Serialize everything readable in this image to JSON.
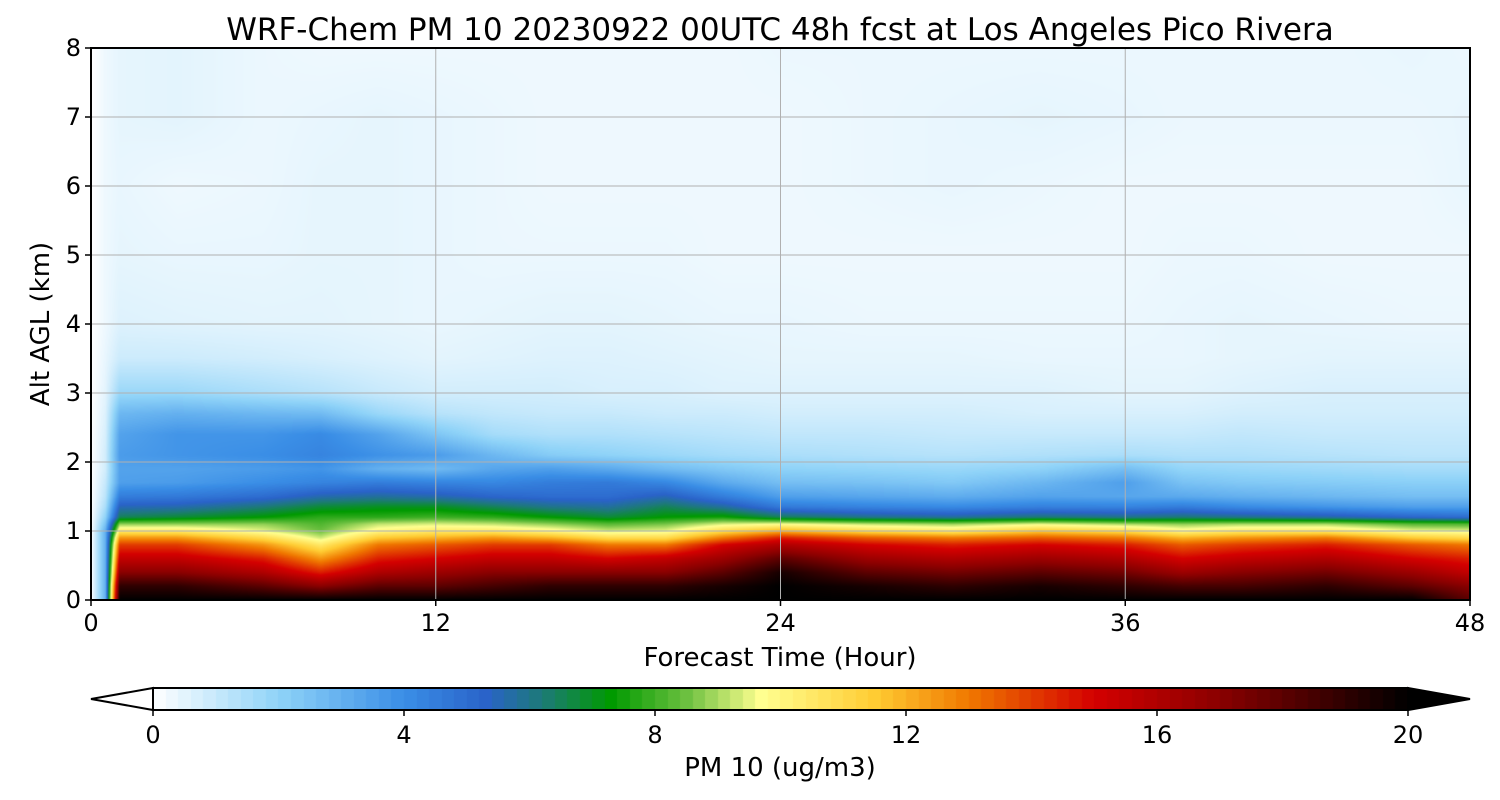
{
  "chart_data": {
    "type": "heatmap",
    "title": "WRF-Chem PM 10  20230922 00UTC 48h fcst at Los Angeles Pico Rivera",
    "xlabel": "Forecast Time (Hour)",
    "ylabel": "Alt AGL (km)",
    "xlim": [
      0,
      48
    ],
    "ylim": [
      0,
      8
    ],
    "xticks": [
      0,
      12,
      24,
      36,
      48
    ],
    "yticks": [
      0,
      1,
      2,
      3,
      4,
      5,
      6,
      7,
      8
    ],
    "grid": true,
    "colorbar": {
      "label": "PM 10  (ug/m3)",
      "orientation": "horizontal",
      "placement": "bottom",
      "extend": "both",
      "ticks": [
        0,
        4,
        8,
        12,
        16,
        20
      ],
      "range": [
        0,
        20
      ],
      "stops": [
        {
          "v": 0,
          "c": "#ffffff"
        },
        {
          "v": 2,
          "c": "#8fd3f8"
        },
        {
          "v": 4,
          "c": "#3a8ee6"
        },
        {
          "v": 5.3,
          "c": "#2a63c9"
        },
        {
          "v": 6.2,
          "c": "#1d7a78"
        },
        {
          "v": 7.3,
          "c": "#009a00"
        },
        {
          "v": 8.5,
          "c": "#6cc040"
        },
        {
          "v": 9.7,
          "c": "#ffff90"
        },
        {
          "v": 11.5,
          "c": "#ffcc33"
        },
        {
          "v": 13,
          "c": "#f07800"
        },
        {
          "v": 15,
          "c": "#d40000"
        },
        {
          "v": 17,
          "c": "#8a0000"
        },
        {
          "v": 20,
          "c": "#000000"
        }
      ]
    },
    "data_grid": {
      "hours": [
        0,
        0.5,
        1,
        3,
        6,
        8,
        10,
        12,
        14,
        16,
        18,
        20,
        22,
        24,
        27,
        30,
        33,
        36,
        38,
        40,
        43,
        46,
        48
      ],
      "altitude_km": [
        0,
        0.2,
        0.4,
        0.6,
        0.8,
        0.9,
        1.0,
        1.1,
        1.2,
        1.35,
        1.5,
        1.7,
        1.9,
        2.1,
        2.4,
        2.7,
        3.0,
        3.5,
        4.0,
        5.0,
        6.0,
        7.0,
        8.0
      ],
      "pm10_ugm3": [
        [
          0,
          3,
          20,
          20,
          20,
          20,
          20,
          20,
          20,
          20,
          20,
          20,
          20,
          20,
          20,
          20,
          20,
          20,
          20,
          20,
          20,
          20,
          18
        ],
        [
          0,
          3,
          19,
          19,
          18,
          17,
          18,
          18,
          18.5,
          19,
          19,
          19,
          19.5,
          20,
          19.5,
          19,
          19.5,
          19,
          18.5,
          18.5,
          19,
          18,
          17
        ],
        [
          0,
          3,
          17,
          17,
          16,
          14.5,
          16,
          16.5,
          17,
          17,
          17,
          17,
          18,
          19.5,
          18,
          17.5,
          18,
          17.5,
          16.5,
          17,
          17.5,
          16.5,
          15.5
        ],
        [
          0,
          3,
          15.5,
          15.5,
          14.5,
          12.5,
          14.5,
          15,
          15.5,
          15.5,
          15,
          15.5,
          16.5,
          18,
          16.5,
          16,
          16.5,
          16,
          15,
          15.5,
          16,
          15,
          14.5
        ],
        [
          0,
          3,
          14,
          14,
          12.5,
          10.5,
          13,
          13.5,
          14,
          14,
          13,
          13,
          15,
          16,
          15,
          14.5,
          15,
          14.5,
          13.5,
          14,
          14.5,
          13.5,
          13
        ],
        [
          0,
          3,
          12.5,
          12.5,
          11,
          9.3,
          11.5,
          12,
          12.5,
          12,
          11,
          11,
          13,
          14.5,
          13.5,
          13,
          13.5,
          13,
          12,
          12.5,
          13,
          11.5,
          11
        ],
        [
          0,
          3,
          10.5,
          10.5,
          9.5,
          8.5,
          10,
          10.5,
          10.5,
          10,
          9.3,
          9.5,
          11,
          12,
          11,
          10.5,
          11.5,
          11,
          10,
          10.5,
          10.5,
          9.6,
          9.5
        ],
        [
          0,
          2.5,
          8.8,
          8.8,
          8.8,
          8.2,
          9.2,
          9.4,
          9.2,
          8.8,
          8.3,
          8.6,
          9.4,
          9.7,
          9.2,
          8.9,
          9.5,
          9.0,
          8.8,
          9.0,
          9.0,
          8.3,
          8.2
        ],
        [
          0,
          2,
          6.5,
          6.8,
          7.3,
          7.8,
          7.8,
          8.0,
          7.8,
          7.3,
          6.8,
          7.3,
          7.5,
          6.5,
          6.0,
          5.8,
          6.2,
          6.0,
          6.2,
          6.0,
          5.7,
          5.2,
          5.0
        ],
        [
          0,
          1.5,
          5.5,
          5.6,
          6.2,
          6.8,
          7.0,
          7.0,
          6.5,
          6.0,
          5.8,
          6.5,
          5.8,
          4.6,
          4.3,
          4.1,
          4.4,
          4.3,
          4.5,
          4.1,
          3.8,
          3.5,
          3.5
        ],
        [
          0,
          1.2,
          4.5,
          4.6,
          5.0,
          5.6,
          5.8,
          5.6,
          5.2,
          5.0,
          5.0,
          5.5,
          4.5,
          3.5,
          3.3,
          3.1,
          3.4,
          3.3,
          3.2,
          3.0,
          2.8,
          2.6,
          2.6
        ],
        [
          0,
          1.0,
          3.5,
          3.6,
          4.0,
          4.3,
          4.5,
          4.3,
          4.2,
          4.5,
          4.6,
          4.2,
          3.2,
          2.6,
          2.5,
          2.3,
          2.8,
          3.5,
          2.5,
          2.3,
          2.2,
          2.1,
          2.1
        ],
        [
          0,
          0.8,
          3.4,
          3.4,
          3.6,
          3.8,
          3.0,
          2.7,
          3.3,
          3.5,
          3.2,
          2.7,
          2.3,
          2.0,
          1.9,
          1.8,
          2.0,
          2.6,
          1.9,
          1.8,
          1.7,
          1.6,
          1.6
        ],
        [
          0,
          0.8,
          3.6,
          3.8,
          4.0,
          4.3,
          3.9,
          3.6,
          2.8,
          2.2,
          2.0,
          1.8,
          1.6,
          1.5,
          1.4,
          1.3,
          1.4,
          1.5,
          1.4,
          1.4,
          1.3,
          1.2,
          1.2
        ],
        [
          0,
          0.7,
          3.4,
          3.8,
          3.8,
          4.1,
          3.4,
          2.4,
          1.6,
          1.4,
          1.4,
          1.3,
          1.2,
          1.1,
          1.1,
          1.0,
          1.0,
          1.0,
          1.0,
          1.1,
          1.0,
          1.0,
          1.0
        ],
        [
          0,
          0.6,
          2.8,
          3.0,
          2.8,
          2.7,
          1.8,
          1.3,
          1.1,
          1.0,
          1.0,
          0.9,
          0.9,
          0.8,
          0.8,
          0.8,
          0.7,
          0.7,
          0.7,
          0.8,
          0.8,
          0.8,
          0.8
        ],
        [
          0,
          0.5,
          1.8,
          1.8,
          1.5,
          1.3,
          1.0,
          0.8,
          0.8,
          0.8,
          0.7,
          0.7,
          0.6,
          0.6,
          0.6,
          0.6,
          0.6,
          0.5,
          0.5,
          0.6,
          0.7,
          0.7,
          0.7
        ],
        [
          0,
          0.4,
          0.9,
          0.9,
          0.8,
          0.7,
          0.6,
          0.5,
          0.55,
          0.6,
          0.6,
          0.55,
          0.5,
          0.45,
          0.45,
          0.45,
          0.4,
          0.4,
          0.4,
          0.45,
          0.5,
          0.5,
          0.5
        ],
        [
          0,
          0.3,
          0.6,
          0.55,
          0.5,
          0.5,
          0.45,
          0.4,
          0.45,
          0.5,
          0.5,
          0.45,
          0.4,
          0.4,
          0.35,
          0.35,
          0.35,
          0.35,
          0.4,
          0.45,
          0.4,
          0.35,
          0.35
        ],
        [
          0,
          0.3,
          0.45,
          0.4,
          0.4,
          0.45,
          0.45,
          0.4,
          0.35,
          0.35,
          0.35,
          0.35,
          0.3,
          0.3,
          0.3,
          0.3,
          0.3,
          0.3,
          0.35,
          0.35,
          0.3,
          0.3,
          0.3
        ],
        [
          0,
          0.3,
          0.4,
          0.3,
          0.35,
          0.45,
          0.45,
          0.4,
          0.35,
          0.3,
          0.3,
          0.3,
          0.3,
          0.3,
          0.35,
          0.4,
          0.35,
          0.3,
          0.3,
          0.3,
          0.3,
          0.3,
          0.4
        ],
        [
          0,
          0.3,
          0.45,
          0.5,
          0.35,
          0.4,
          0.45,
          0.4,
          0.35,
          0.3,
          0.3,
          0.3,
          0.3,
          0.3,
          0.35,
          0.4,
          0.45,
          0.4,
          0.35,
          0.35,
          0.35,
          0.35,
          0.4
        ],
        [
          0,
          0.3,
          0.45,
          0.5,
          0.35,
          0.3,
          0.3,
          0.3,
          0.3,
          0.3,
          0.3,
          0.3,
          0.3,
          0.35,
          0.35,
          0.35,
          0.35,
          0.35,
          0.35,
          0.35,
          0.35,
          0.4,
          0.35
        ]
      ]
    }
  }
}
